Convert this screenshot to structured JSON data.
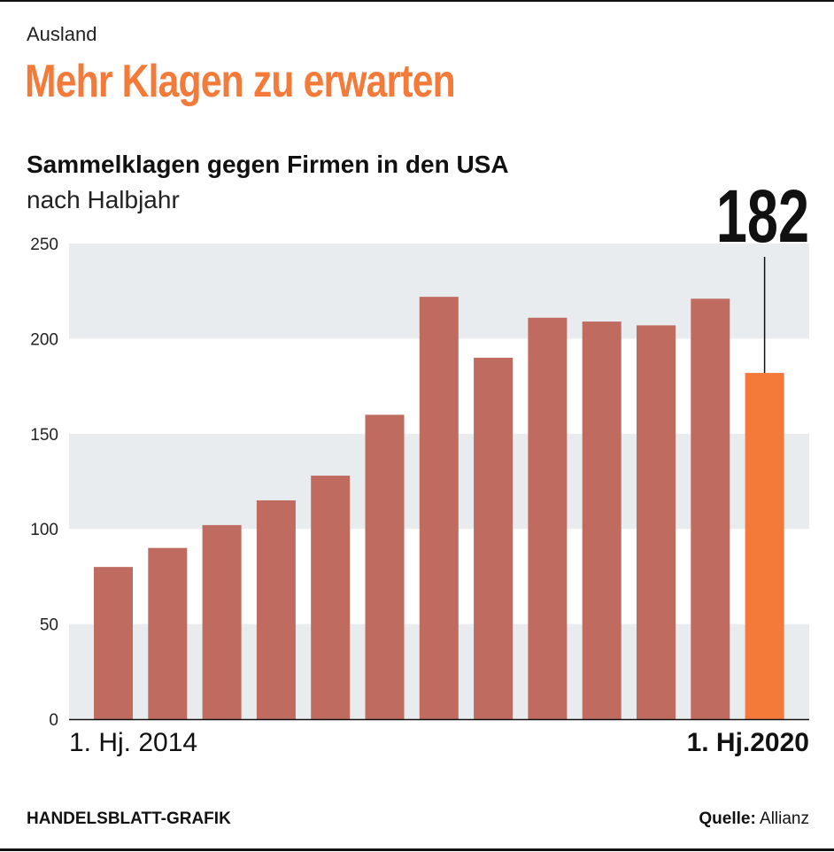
{
  "section": "Ausland",
  "headline": "Mehr Klagen zu erwarten",
  "footer": {
    "credit": "HANDELSBLATT-GRAFIK",
    "source_label": "Quelle:",
    "source": "Allianz"
  },
  "chart_data": {
    "type": "bar",
    "title": "Sammelklagen gegen Firmen in den USA",
    "subtitle": "nach Halbjahr",
    "x_start_label": "1. Hj. 2014",
    "x_end_label": "1. Hj.2020",
    "values": [
      80,
      90,
      102,
      115,
      128,
      160,
      222,
      190,
      211,
      209,
      207,
      221,
      182
    ],
    "highlight": {
      "index": 12,
      "label": "182",
      "color": "#f47a3a"
    },
    "bar_color": "#bf6b5f",
    "band_color": "#e8ecee",
    "ylim": [
      0,
      250
    ],
    "yticks": [
      "0",
      "50",
      "100",
      "150",
      "200",
      "250"
    ],
    "grid": "alternating bands"
  }
}
